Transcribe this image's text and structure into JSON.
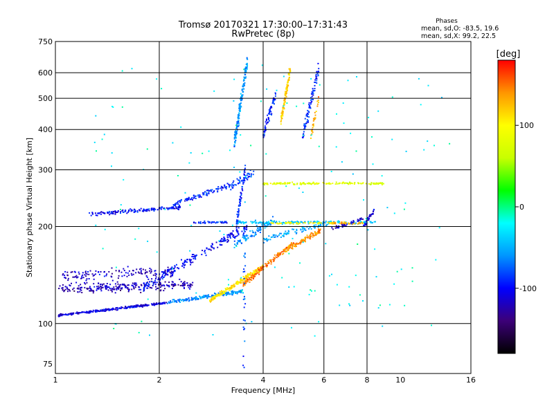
{
  "chart_data": {
    "type": "scatter",
    "title": "Tromsø 20170321 17:30:00–17:31:43",
    "subtitle": "RwPretec (8p)",
    "xlabel": "Frequency [MHz]",
    "ylabel": "Stationary phase Virtual Height [km]",
    "x_scale": "log",
    "y_scale": "log",
    "xlim": [
      1,
      16
    ],
    "ylim": [
      70,
      750
    ],
    "x_ticks": [
      "1",
      "2",
      "4",
      "6",
      "8",
      "10",
      "16"
    ],
    "x_tick_values": [
      1,
      2,
      4,
      6,
      8,
      10,
      16
    ],
    "x_grid_lines": [
      2,
      4,
      6,
      8
    ],
    "y_ticks": [
      "75",
      "100",
      "200",
      "300",
      "400",
      "500",
      "600",
      "750"
    ],
    "y_tick_values": [
      75,
      100,
      200,
      300,
      400,
      500,
      600,
      750
    ],
    "y_grid_lines": [
      100,
      200,
      300,
      400,
      500,
      600
    ],
    "grid": true,
    "stats": {
      "title": "Phases",
      "line_o": "mean, sd,O: -83.5, 19.6",
      "line_x": "mean, sd,X:  99.2, 22.5"
    },
    "colorbar": {
      "label": "[deg]",
      "range": [
        -180,
        180
      ],
      "ticks": [
        "100",
        "0",
        "-100"
      ],
      "tick_values": [
        100,
        0,
        -100
      ],
      "colors": [
        "#000000",
        "#3c0078",
        "#0000ff",
        "#0096ff",
        "#00ffff",
        "#00ff00",
        "#c8ff00",
        "#ffff00",
        "#ff9600",
        "#ff0000"
      ]
    },
    "series": [
      {
        "f_start": 1.02,
        "f_end": 2.1,
        "h_start": 106,
        "h_end": 116,
        "n": 260,
        "phase": -110,
        "spread_h": 0.012
      },
      {
        "f_start": 2.1,
        "f_end": 3.5,
        "h_start": 116,
        "h_end": 126,
        "n": 180,
        "phase": -60,
        "spread_h": 0.02
      },
      {
        "f_start": 2.8,
        "f_end": 4.0,
        "h_start": 118,
        "h_end": 150,
        "n": 200,
        "phase": 110,
        "spread_h": 0.025
      },
      {
        "f_start": 3.5,
        "f_end": 4.9,
        "h_start": 132,
        "h_end": 178,
        "n": 150,
        "phase": 150,
        "spread_h": 0.03
      },
      {
        "f_start": 4.6,
        "f_end": 5.9,
        "h_start": 168,
        "h_end": 195,
        "n": 110,
        "phase": 140,
        "spread_h": 0.025
      },
      {
        "f_start": 1.02,
        "f_end": 2.5,
        "h_start": 128,
        "h_end": 132,
        "n": 260,
        "phase": -120,
        "spread_h": 0.05
      },
      {
        "f_start": 1.05,
        "f_end": 2.2,
        "h_start": 140,
        "h_end": 145,
        "n": 140,
        "phase": -115,
        "spread_h": 0.06
      },
      {
        "f_start": 1.8,
        "f_end": 3.6,
        "h_start": 130,
        "h_end": 200,
        "n": 200,
        "phase": -100,
        "spread_h": 0.045
      },
      {
        "f_start": 3.3,
        "f_end": 4.3,
        "h_start": 175,
        "h_end": 210,
        "n": 90,
        "phase": -60,
        "spread_h": 0.04
      },
      {
        "f_start": 4.0,
        "f_end": 6.2,
        "h_start": 182,
        "h_end": 205,
        "n": 90,
        "phase": -50,
        "spread_h": 0.03
      },
      {
        "f_start": 1.25,
        "f_end": 2.3,
        "h_start": 218,
        "h_end": 230,
        "n": 150,
        "phase": -100,
        "spread_h": 0.02
      },
      {
        "f_start": 2.2,
        "f_end": 3.2,
        "h_start": 235,
        "h_end": 268,
        "n": 100,
        "phase": -90,
        "spread_h": 0.025
      },
      {
        "f_start": 3.2,
        "f_end": 3.8,
        "h_start": 265,
        "h_end": 295,
        "n": 50,
        "phase": -80,
        "spread_h": 0.04
      },
      {
        "f_start": 2.5,
        "f_end": 3.2,
        "h_start": 206,
        "h_end": 206,
        "n": 40,
        "phase": -90,
        "spread_h": 0.01
      },
      {
        "f_start": 3.3,
        "f_end": 8.5,
        "h_start": 206,
        "h_end": 206,
        "n": 170,
        "phase": -40,
        "spread_h": 0.015
      },
      {
        "f_start": 4.2,
        "f_end": 6.4,
        "h_start": 205,
        "h_end": 205,
        "n": 50,
        "phase": 100,
        "spread_h": 0.01
      },
      {
        "f_start": 6.3,
        "f_end": 7.8,
        "h_start": 205,
        "h_end": 205,
        "n": 45,
        "phase": 130,
        "spread_h": 0.01
      },
      {
        "f_start": 4.0,
        "f_end": 9.0,
        "h_start": 272,
        "h_end": 272,
        "n": 150,
        "phase": 80,
        "spread_h": 0.012
      },
      {
        "f_start": 6.3,
        "f_end": 7.8,
        "h_start": 196,
        "h_end": 212,
        "n": 40,
        "phase": -110,
        "spread_h": 0.02
      },
      {
        "f_start": 7.8,
        "f_end": 8.4,
        "h_start": 200,
        "h_end": 225,
        "n": 30,
        "phase": -110,
        "spread_h": 0.03
      },
      {
        "f_start": 3.3,
        "f_end": 3.6,
        "h_start": 360,
        "h_end": 650,
        "n": 170,
        "phase": -60,
        "spread_h": 0.08
      },
      {
        "f_start": 3.35,
        "f_end": 3.55,
        "h_start": 205,
        "h_end": 300,
        "n": 70,
        "phase": -90,
        "spread_h": 0.06
      },
      {
        "f_start": 4.0,
        "f_end": 4.35,
        "h_start": 380,
        "h_end": 520,
        "n": 70,
        "phase": -90,
        "spread_h": 0.06
      },
      {
        "f_start": 4.5,
        "f_end": 4.8,
        "h_start": 420,
        "h_end": 620,
        "n": 110,
        "phase": 120,
        "spread_h": 0.06
      },
      {
        "f_start": 5.2,
        "f_end": 5.8,
        "h_start": 380,
        "h_end": 620,
        "n": 90,
        "phase": -90,
        "spread_h": 0.07
      },
      {
        "f_start": 5.5,
        "f_end": 5.8,
        "h_start": 380,
        "h_end": 500,
        "n": 30,
        "phase": 130,
        "spread_h": 0.05
      },
      {
        "f_start": 1.3,
        "f_end": 14.0,
        "h_start": 90,
        "h_end": 650,
        "n": 170,
        "phase": -20,
        "spread_h": 0.6,
        "scatter": true
      },
      {
        "f_start": 3.5,
        "f_end": 3.55,
        "h_start": 72,
        "h_end": 200,
        "n": 30,
        "phase": -80,
        "spread_h": 0.3,
        "scatter": true
      }
    ]
  }
}
